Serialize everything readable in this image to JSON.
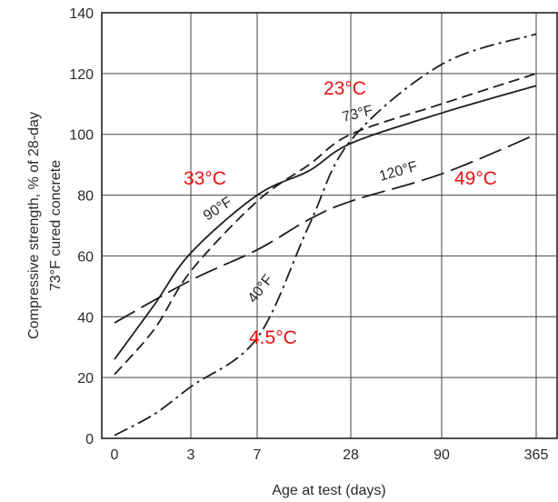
{
  "chart_data": {
    "type": "line",
    "xlabel": "Age at test (days)",
    "ylabel": [
      "Compressive strength, % of 28-day",
      "73°F cured concrete"
    ],
    "x_ticks": [
      "0",
      "3",
      "7",
      "28",
      "90",
      "365"
    ],
    "y_ticks": [
      0,
      20,
      40,
      60,
      80,
      100,
      120,
      140
    ],
    "ylim": [
      0,
      140
    ],
    "grid": true,
    "series": [
      {
        "name": "73°F",
        "style": "dashed",
        "points": [
          [
            "0",
            21
          ],
          [
            "1",
            36
          ],
          [
            "3",
            55
          ],
          [
            "7",
            78
          ],
          [
            "14",
            90
          ],
          [
            "28",
            100
          ],
          [
            "90",
            110
          ],
          [
            "365",
            120
          ]
        ]
      },
      {
        "name": "90°F",
        "style": "solid",
        "points": [
          [
            "0",
            26
          ],
          [
            "1",
            44
          ],
          [
            "3",
            61
          ],
          [
            "7",
            80
          ],
          [
            "14",
            88
          ],
          [
            "28",
            97
          ],
          [
            "90",
            107
          ],
          [
            "365",
            116
          ]
        ]
      },
      {
        "name": "120°F",
        "style": "long-dash",
        "points": [
          [
            "0",
            38
          ],
          [
            "3",
            52
          ],
          [
            "7",
            62
          ],
          [
            "14",
            72
          ],
          [
            "28",
            78
          ],
          [
            "90",
            87
          ],
          [
            "365",
            100
          ]
        ]
      },
      {
        "name": "40°F",
        "style": "dash-dot",
        "points": [
          [
            "0",
            1
          ],
          [
            "1",
            8
          ],
          [
            "3",
            17
          ],
          [
            "7",
            33
          ],
          [
            "14",
            70
          ],
          [
            "28",
            98
          ],
          [
            "90",
            123
          ],
          [
            "365",
            133
          ]
        ]
      }
    ],
    "annotations": [
      "23°C",
      "33°C",
      "49°C",
      "4.5°C"
    ]
  }
}
